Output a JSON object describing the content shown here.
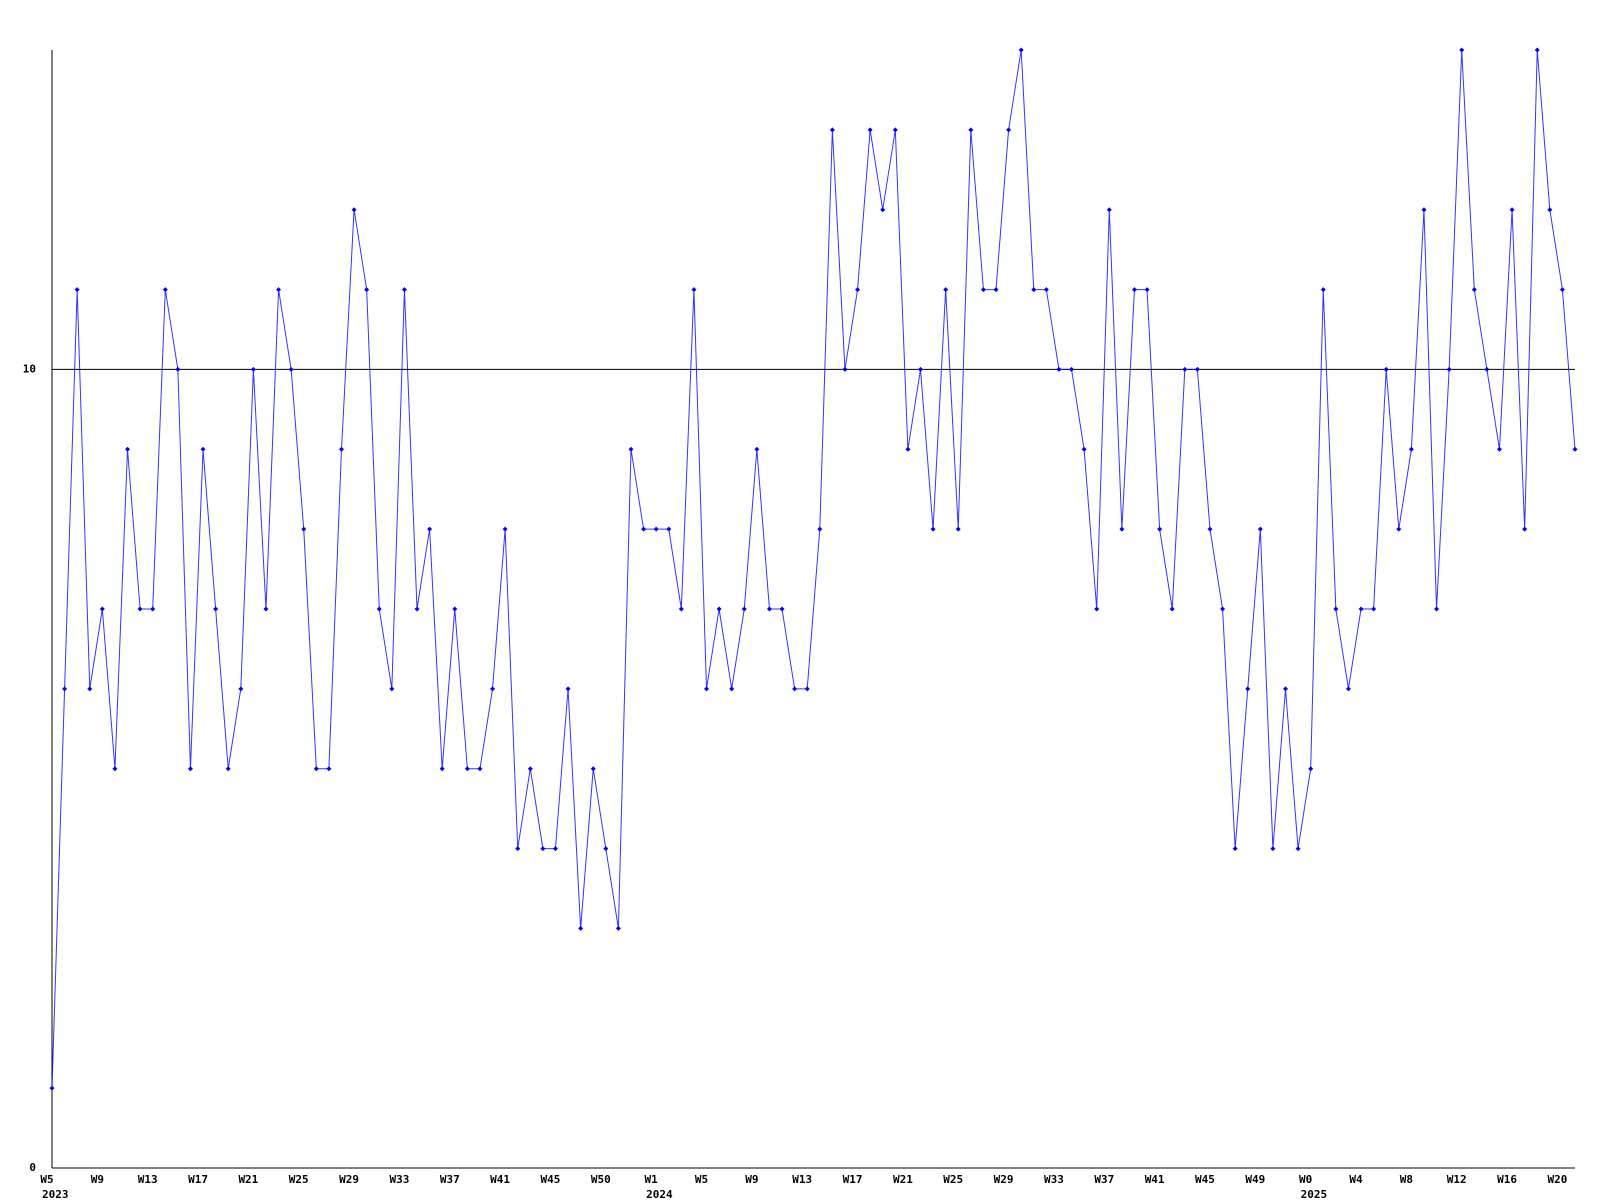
{
  "chart_data": {
    "type": "line",
    "categories": [
      "W5",
      null,
      null,
      null,
      "W9",
      null,
      null,
      null,
      "W13",
      null,
      null,
      null,
      "W17",
      null,
      null,
      null,
      "W21",
      null,
      null,
      null,
      "W25",
      null,
      null,
      null,
      "W29",
      null,
      null,
      null,
      "W33",
      null,
      null,
      null,
      "W37",
      null,
      null,
      null,
      "W41",
      null,
      null,
      null,
      "W45",
      null,
      null,
      null,
      "W50",
      null,
      null,
      null,
      "W1",
      null,
      null,
      null,
      "W5",
      null,
      null,
      null,
      "W9",
      null,
      null,
      null,
      "W13",
      null,
      null,
      null,
      "W17",
      null,
      null,
      null,
      "W21",
      null,
      null,
      null,
      "W25",
      null,
      null,
      null,
      "W29",
      null,
      null,
      null,
      "W33",
      null,
      null,
      null,
      "W37",
      null,
      null,
      null,
      "W41",
      null,
      null,
      null,
      "W45",
      null,
      null,
      null,
      "W49",
      null,
      null,
      null,
      "W0",
      null,
      null,
      null,
      "W4",
      null,
      null,
      null,
      "W8",
      null,
      null,
      null,
      "W12",
      null,
      null,
      null,
      "W16",
      null,
      null,
      null,
      "W20",
      null
    ],
    "category_years": [
      "2023",
      null,
      null,
      null,
      null,
      null,
      null,
      null,
      null,
      null,
      null,
      null,
      null,
      null,
      null,
      null,
      null,
      null,
      null,
      null,
      null,
      null,
      null,
      null,
      null,
      null,
      null,
      null,
      null,
      null,
      null,
      null,
      null,
      null,
      null,
      null,
      null,
      null,
      null,
      null,
      null,
      null,
      null,
      null,
      null,
      null,
      null,
      null,
      "2024",
      null,
      null,
      null,
      null,
      null,
      null,
      null,
      null,
      null,
      null,
      null,
      null,
      null,
      null,
      null,
      null,
      null,
      null,
      null,
      null,
      null,
      null,
      null,
      null,
      null,
      null,
      null,
      null,
      null,
      null,
      null,
      null,
      null,
      null,
      null,
      null,
      null,
      null,
      null,
      null,
      null,
      null,
      null,
      null,
      null,
      null,
      null,
      null,
      null,
      null,
      null,
      "2025",
      null,
      null,
      null,
      null,
      null,
      null,
      null,
      null,
      null,
      null,
      null,
      null,
      null,
      null,
      null,
      null,
      null,
      null,
      null,
      null,
      null
    ],
    "series": [
      {
        "color": "#0000ff",
        "values": [
          1,
          6,
          11,
          6,
          7,
          5,
          9,
          7,
          7,
          11,
          10,
          5,
          9,
          7,
          5,
          6,
          10,
          7,
          11,
          10,
          8,
          5,
          5,
          9,
          12,
          11,
          7,
          6,
          11,
          7,
          8,
          5,
          7,
          5,
          5,
          6,
          8,
          4,
          5,
          4,
          4,
          6,
          3,
          5,
          4,
          3,
          9,
          8,
          8,
          8,
          7,
          11,
          6,
          7,
          6,
          7,
          9,
          7,
          7,
          6,
          6,
          8,
          13,
          10,
          11,
          13,
          12,
          13,
          9,
          10,
          8,
          11,
          8,
          13,
          11,
          11,
          13,
          14,
          11,
          11,
          10,
          10,
          9,
          7,
          12,
          8,
          11,
          11,
          8,
          7,
          10,
          10,
          8,
          7,
          4,
          6,
          8,
          4,
          6,
          4,
          5,
          11,
          7,
          6,
          7,
          7,
          10,
          8,
          9,
          12,
          7,
          10,
          14,
          11,
          10,
          9,
          12,
          8,
          14,
          12,
          11,
          9
        ]
      }
    ],
    "ylim": [
      0,
      14
    ],
    "yticks": [
      0,
      10
    ],
    "grid": true
  }
}
